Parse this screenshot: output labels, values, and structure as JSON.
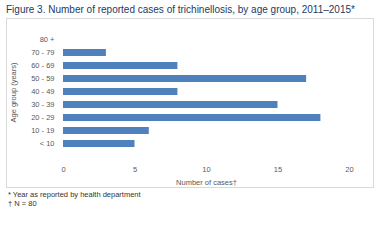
{
  "chart_data": {
    "type": "bar",
    "orientation": "horizontal",
    "title": "Figure 3. Number of reported cases of trichinellosis, by age group, 2011–2015*",
    "xlabel": "Number of cases†",
    "ylabel": "Age group (years)",
    "categories": [
      "80 +",
      "70 - 79",
      "60 - 69",
      "50 - 59",
      "40 - 49",
      "30 - 39",
      "20 - 29",
      "10 - 19",
      "< 10"
    ],
    "values": [
      0,
      3,
      8,
      17,
      8,
      15,
      18,
      6,
      5
    ],
    "color": "#4f81bd",
    "xlim": [
      0,
      20
    ],
    "xticks": [
      0,
      5,
      10,
      15,
      20
    ],
    "grid": false,
    "notes": [
      "* Year as reported by health department",
      "† N = 80"
    ]
  }
}
